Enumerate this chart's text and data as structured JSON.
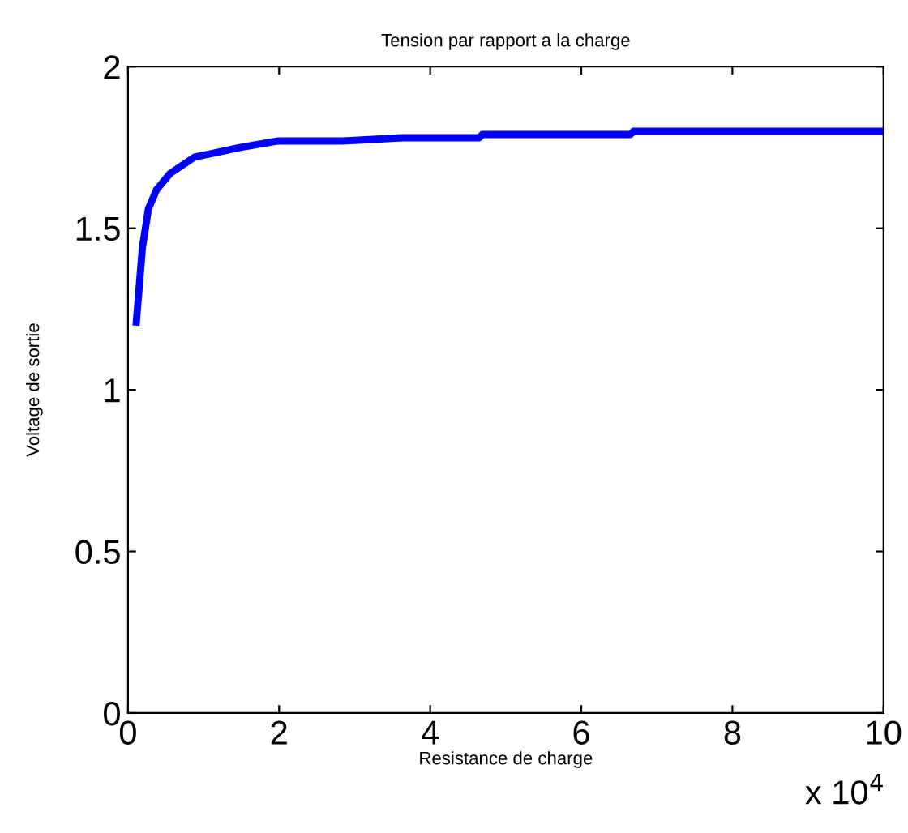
{
  "chart_data": {
    "type": "line",
    "title": "Tension par rapport a la charge",
    "xlabel": "Resistance de charge",
    "ylabel": "Voltage de sortie",
    "x": [
      0.11,
      0.19,
      0.27,
      0.38,
      0.56,
      0.88,
      1.49,
      1.99,
      2.85,
      3.63,
      4.65,
      4.69,
      6.65,
      6.69,
      10
    ],
    "series": [
      {
        "color": "#0000ff",
        "values": [
          1.21,
          1.44,
          1.56,
          1.62,
          1.67,
          1.72,
          1.75,
          1.77,
          1.77,
          1.78,
          1.78,
          1.79,
          1.79,
          1.8,
          1.8
        ]
      }
    ],
    "xlim": [
      0,
      10
    ],
    "xticks": [
      0,
      2,
      4,
      6,
      8,
      10
    ],
    "ylim": [
      0,
      2
    ],
    "yticks": [
      0,
      0.5,
      1,
      1.5,
      2
    ],
    "annotations": [
      "x 10$^{4}$"
    ],
    "grid": false,
    "legend": false,
    "marker": "none",
    "line_style": "solid"
  }
}
